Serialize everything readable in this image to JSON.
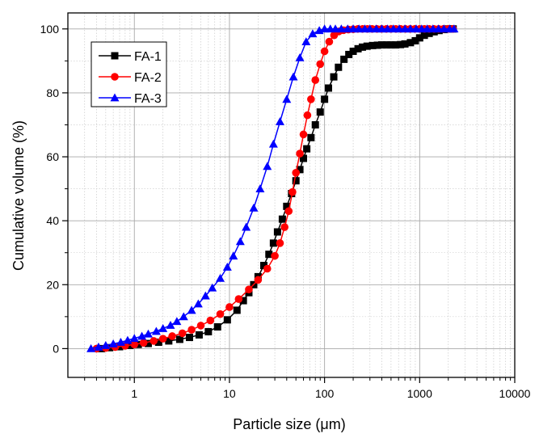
{
  "chart_data": {
    "type": "scatter",
    "title": "",
    "xlabel": "Particle size (μm)",
    "ylabel": "Cumulative volume (%)",
    "xscale": "log",
    "xlim": [
      0.2,
      10000
    ],
    "ylim": [
      -9,
      105
    ],
    "xticks": [
      1,
      10,
      100,
      1000,
      10000
    ],
    "xtick_labels": [
      "1",
      "10",
      "100",
      "1000",
      "10000"
    ],
    "yticks": [
      0,
      20,
      40,
      60,
      80,
      100
    ],
    "ytick_labels": [
      "0",
      "20",
      "40",
      "60",
      "80",
      "100"
    ],
    "grid": true,
    "legend_position": "top-left",
    "series": [
      {
        "name": "FA-1",
        "color": "#000000",
        "marker": "square",
        "x": [
          0.45,
          0.55,
          0.7,
          0.9,
          1.1,
          1.4,
          1.8,
          2.3,
          3,
          3.8,
          4.8,
          6,
          7.5,
          9.5,
          12,
          14,
          16,
          18,
          20,
          23,
          26,
          29,
          32,
          36,
          40,
          45,
          50,
          55,
          60,
          65,
          72,
          80,
          90,
          100,
          110,
          125,
          140,
          160,
          180,
          200,
          225,
          250,
          280,
          320,
          360,
          400,
          450,
          500,
          560,
          630,
          700,
          800,
          900,
          1000,
          1120,
          1260,
          1420,
          1600,
          1800,
          2000,
          2250
        ],
        "y": [
          0,
          0.3,
          0.6,
          1,
          1.3,
          1.6,
          2,
          2.4,
          2.9,
          3.5,
          4.3,
          5.3,
          6.8,
          9,
          12,
          15,
          17.5,
          20,
          22.5,
          26,
          29.5,
          33,
          36.5,
          40.5,
          44.5,
          48.5,
          52.5,
          56,
          59.5,
          62.5,
          66,
          70,
          74,
          78,
          81.5,
          85,
          88,
          90.5,
          92,
          93,
          93.8,
          94.3,
          94.6,
          94.8,
          94.9,
          95,
          95,
          95,
          95,
          95.1,
          95.3,
          95.7,
          96.3,
          97.2,
          98,
          98.6,
          99.1,
          99.5,
          99.8,
          100,
          100
        ]
      },
      {
        "name": "FA-2",
        "color": "#ff0000",
        "marker": "circle",
        "x": [
          0.4,
          0.5,
          0.63,
          0.8,
          1,
          1.25,
          1.6,
          2,
          2.5,
          3.2,
          4,
          5,
          6.3,
          8,
          10,
          12.5,
          16,
          20,
          25,
          30,
          34,
          38,
          42,
          46,
          50,
          55,
          60,
          66,
          72,
          80,
          90,
          100,
          112,
          126,
          141,
          158,
          178,
          200,
          224,
          251,
          282,
          316,
          355,
          398,
          447,
          501,
          562,
          631,
          708,
          794,
          891,
          1000,
          1122,
          1259,
          1413,
          1585,
          1778,
          1995,
          2239
        ],
        "y": [
          0,
          0.2,
          0.5,
          0.9,
          1.3,
          1.8,
          2.4,
          3.1,
          3.9,
          4.8,
          5.9,
          7.2,
          8.8,
          10.8,
          13,
          15.5,
          18.5,
          21.5,
          25,
          29,
          33,
          38,
          43,
          49,
          55,
          61,
          67,
          73,
          78,
          84,
          89,
          93,
          96,
          98,
          99.2,
          99.6,
          99.8,
          99.9,
          100,
          100,
          100,
          100,
          100,
          100,
          100,
          100,
          100,
          100,
          100,
          100,
          100,
          100,
          100,
          100,
          100,
          100,
          100,
          100,
          100
        ]
      },
      {
        "name": "FA-3",
        "color": "#0000ff",
        "marker": "triangle",
        "x": [
          0.35,
          0.42,
          0.5,
          0.6,
          0.72,
          0.85,
          1,
          1.2,
          1.4,
          1.7,
          2,
          2.4,
          2.8,
          3.3,
          4,
          4.7,
          5.6,
          6.6,
          8,
          9.5,
          11,
          13,
          15,
          18,
          21,
          25,
          29,
          34,
          40,
          47,
          55,
          64,
          75,
          88,
          100,
          115,
          130,
          150,
          175,
          200,
          230,
          265,
          300,
          350,
          400,
          460,
          530,
          610,
          700,
          800,
          920,
          1050,
          1200,
          1380,
          1580,
          1800,
          2070,
          2300
        ],
        "y": [
          0,
          0.5,
          1,
          1.5,
          2,
          2.6,
          3.2,
          3.9,
          4.6,
          5.4,
          6.3,
          7.3,
          8.5,
          10,
          12,
          14,
          16.5,
          19,
          22,
          25.5,
          29,
          33.5,
          38,
          44,
          50,
          57,
          64,
          71,
          78,
          85,
          91,
          96,
          98.5,
          99.5,
          100,
          100,
          100,
          100,
          100,
          100,
          100,
          100,
          100,
          100,
          100,
          100,
          100,
          100,
          100,
          100,
          100,
          100,
          100,
          100,
          100,
          100,
          100,
          100
        ]
      }
    ]
  }
}
